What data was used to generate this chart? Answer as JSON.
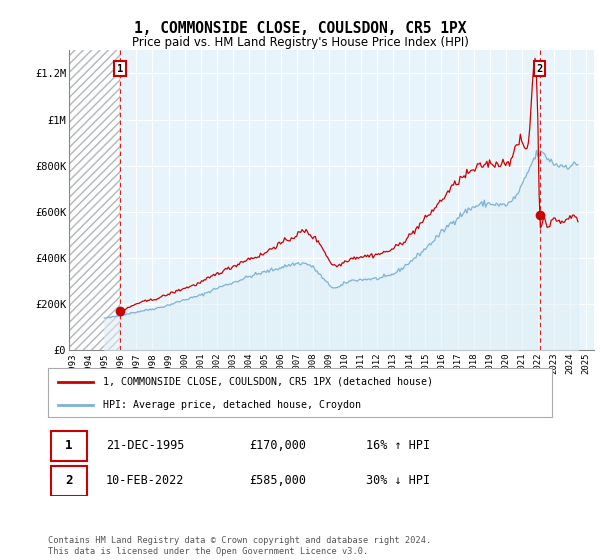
{
  "title": "1, COMMONSIDE CLOSE, COULSDON, CR5 1PX",
  "subtitle": "Price paid vs. HM Land Registry's House Price Index (HPI)",
  "legend_line1": "1, COMMONSIDE CLOSE, COULSDON, CR5 1PX (detached house)",
  "legend_line2": "HPI: Average price, detached house, Croydon",
  "footnote": "Contains HM Land Registry data © Crown copyright and database right 2024.\nThis data is licensed under the Open Government Licence v3.0.",
  "sale1_date": "21-DEC-1995",
  "sale1_price": "£170,000",
  "sale1_hpi": "16% ↑ HPI",
  "sale2_date": "10-FEB-2022",
  "sale2_price": "£585,000",
  "sale2_hpi": "30% ↓ HPI",
  "sale1_year": 1995.97,
  "sale1_value": 170000,
  "sale2_year": 2022.12,
  "sale2_value": 585000,
  "ylim_min": 0,
  "ylim_max": 1300000,
  "xlim_start": 1992.8,
  "xlim_end": 2025.5,
  "hatch_end_year": 1995.97,
  "line_color_red": "#cc0000",
  "line_color_blue": "#7fb3d3",
  "fill_color_blue": "#ddeef6",
  "bg_color": "#ffffff",
  "chart_bg_color": "#e8f4fb",
  "grid_color": "#ffffff",
  "yticks": [
    0,
    200000,
    400000,
    600000,
    800000,
    1000000,
    1200000
  ],
  "ytick_labels": [
    "£0",
    "£200K",
    "£400K",
    "£600K",
    "£800K",
    "£1M",
    "£1.2M"
  ],
  "xticks": [
    1993,
    1994,
    1995,
    1996,
    1997,
    1998,
    1999,
    2000,
    2001,
    2002,
    2003,
    2004,
    2005,
    2006,
    2007,
    2008,
    2009,
    2010,
    2011,
    2012,
    2013,
    2014,
    2015,
    2016,
    2017,
    2018,
    2019,
    2020,
    2021,
    2022,
    2023,
    2024,
    2025
  ]
}
